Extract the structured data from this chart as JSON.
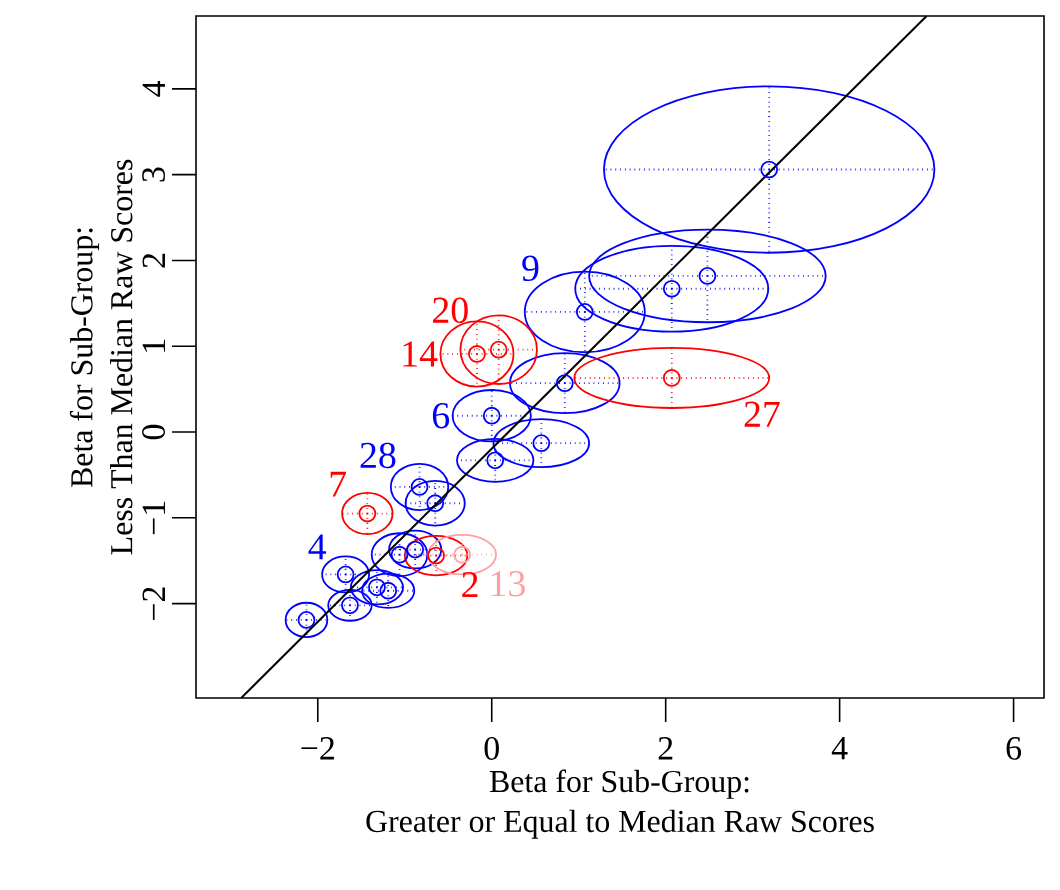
{
  "chart_data": {
    "type": "scatter",
    "xlabel": "Beta for Sub-Group:\nGreater or Equal to Median Raw Scores",
    "ylabel": "Beta for Sub-Group:\nLess Than Median Raw Scores",
    "marker": "circle",
    "xlim": [
      -3.4,
      6.35
    ],
    "ylim": [
      -3.1,
      4.85
    ],
    "xticks": [
      {
        "value": -2,
        "label": "−2"
      },
      0,
      2,
      4,
      6
    ],
    "yticks": [
      {
        "value": -2,
        "label": "−2"
      },
      {
        "value": -1,
        "label": "−1"
      },
      0,
      1,
      2,
      3,
      4
    ],
    "series": [
      {
        "color": "#0000ff",
        "x": [
          3.19,
          2.07,
          2.48,
          1.07,
          0.84,
          0.57,
          0.0,
          0.04,
          -0.83,
          -0.65,
          -1.06,
          -0.88,
          -1.68,
          -1.32,
          -1.19,
          -1.63,
          -2.13
        ],
        "values": [
          3.06,
          1.67,
          1.82,
          1.4,
          0.57,
          -0.13,
          0.19,
          -0.33,
          -0.64,
          -0.83,
          -1.43,
          -1.37,
          -1.66,
          -1.81,
          -1.85,
          -2.02,
          -2.19
        ],
        "xerrors": [
          1.9,
          1.11,
          1.36,
          0.69,
          0.63,
          0.55,
          0.45,
          0.44,
          0.33,
          0.34,
          0.32,
          0.3,
          0.27,
          0.3,
          0.3,
          0.25,
          0.24
        ],
        "errors": [
          0.97,
          0.5,
          0.54,
          0.47,
          0.35,
          0.28,
          0.3,
          0.25,
          0.27,
          0.26,
          0.25,
          0.22,
          0.21,
          0.2,
          0.2,
          0.18,
          0.2
        ]
      },
      {
        "color": "#ff0000",
        "x": [
          0.08,
          -0.17,
          2.07,
          -1.43,
          -0.64
        ],
        "values": [
          0.96,
          0.91,
          0.63,
          -0.95,
          -1.44
        ],
        "xerrors": [
          0.44,
          0.42,
          1.12,
          0.29,
          0.36
        ],
        "errors": [
          0.4,
          0.38,
          0.35,
          0.24,
          0.23
        ]
      },
      {
        "color": "#ffa0a0",
        "x": [
          -0.34
        ],
        "values": [
          -1.43
        ],
        "xerrors": [
          0.39
        ],
        "errors": [
          0.23
        ]
      },
      {
        "type": "line",
        "marker": "none",
        "color": "#000000",
        "x": [
          -2.88,
          5.0
        ],
        "values": [
          -3.1,
          4.85
        ]
      }
    ],
    "annotations": [
      {
        "text": "9",
        "x": 1.07,
        "y": 1.4
      },
      {
        "text": "20",
        "x": 0.08,
        "y": 0.96
      },
      {
        "text": "14",
        "x": -0.17,
        "y": 0.91
      },
      {
        "text": "27",
        "x": 2.07,
        "y": 0.63
      },
      {
        "text": "6",
        "x": 0.0,
        "y": 0.19
      },
      {
        "text": "28",
        "x": -0.83,
        "y": -0.64
      },
      {
        "text": "7",
        "x": -1.43,
        "y": -0.95
      },
      {
        "text": "4",
        "x": -1.68,
        "y": -1.66
      },
      {
        "text": "2",
        "x": -0.64,
        "y": -1.44
      },
      {
        "text": "13",
        "x": -0.34,
        "y": -1.43
      }
    ]
  }
}
